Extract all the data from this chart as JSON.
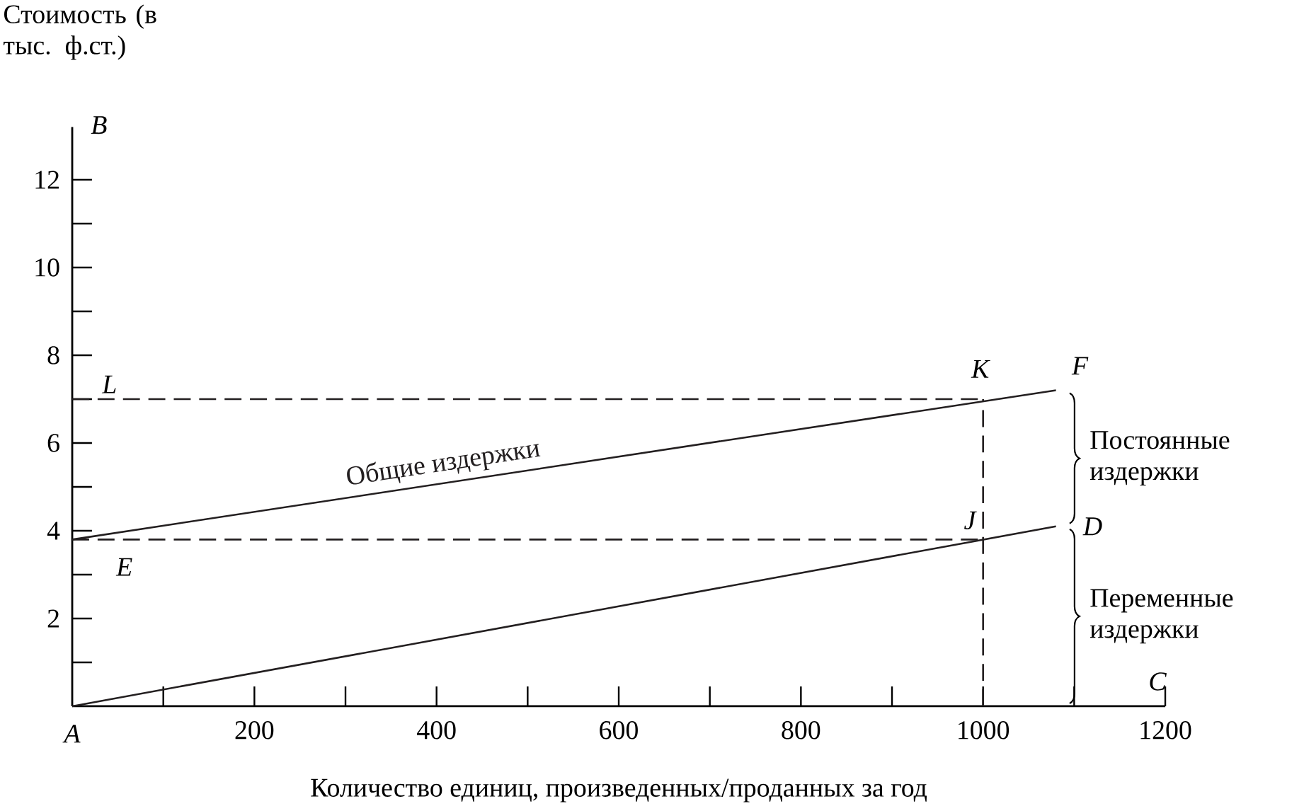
{
  "chart_data": {
    "type": "line",
    "xlabel": "Количество единиц, произведенных/проданных за год",
    "ylabel": "Стоимость (в тыс. ф.ст.)",
    "x": [
      0,
      1080
    ],
    "xlim": [
      0,
      1200
    ],
    "ylim": [
      0,
      13.2
    ],
    "xticks": [
      {
        "value": 100,
        "label": null
      },
      200,
      {
        "value": 300,
        "label": null
      },
      400,
      {
        "value": 500,
        "label": null
      },
      600,
      {
        "value": 700,
        "label": null
      },
      800,
      {
        "value": 900,
        "label": null
      },
      1000,
      {
        "value": 1100,
        "label": null
      },
      1200
    ],
    "yticks": [
      {
        "value": 1,
        "label": null
      },
      2,
      {
        "value": 3,
        "label": null
      },
      4,
      {
        "value": 5,
        "label": null
      },
      6,
      {
        "value": 7,
        "label": null
      },
      8,
      {
        "value": 9,
        "label": null
      },
      10,
      {
        "value": 11,
        "label": null
      },
      12
    ],
    "series": [
      {
        "name": "Общие издержки",
        "color": "#231f20",
        "values": [
          3.8,
          7.2
        ]
      },
      {
        "color": "#231f20",
        "values": [
          0,
          4.1
        ]
      }
    ],
    "ref_lines": [
      {
        "axis": "y",
        "value": 7,
        "line_style": "dashed"
      },
      {
        "axis": "y",
        "value": 3.8,
        "line_style": "dashed"
      },
      {
        "axis": "x",
        "value": 1000,
        "line_style": "dashed"
      }
    ],
    "annotations": [
      "A",
      "B",
      "C",
      "D",
      "E",
      "F",
      "J",
      "K",
      "L",
      "Постоянные издержки",
      "Переменные издержки"
    ],
    "grid": false,
    "legend": false,
    "marker": "none",
    "line_style": "solid"
  }
}
